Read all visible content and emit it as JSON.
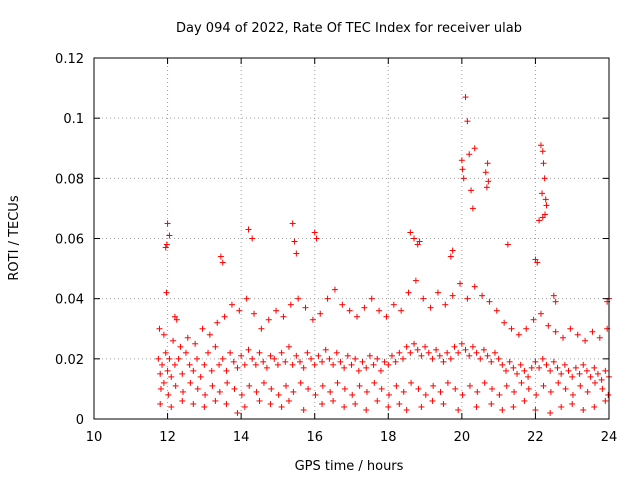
{
  "chart_data": {
    "type": "scatter",
    "title": "Day 094 of 2022, Rate Of TEC Index for receiver ulab",
    "xlabel": "GPS time / hours",
    "ylabel": "ROTI / TECUs",
    "xlim": [
      10,
      24
    ],
    "ylim": [
      0,
      0.12
    ],
    "x_ticks": [
      "10",
      "12",
      "14",
      "16",
      "18",
      "20",
      "22",
      "24"
    ],
    "y_ticks": [
      "0",
      "0.02",
      "0.04",
      "0.06",
      "0.08",
      "0.1",
      "0.12"
    ],
    "x_tick_values": [
      10,
      12,
      14,
      16,
      18,
      20,
      22,
      24
    ],
    "y_tick_values": [
      0,
      0.02,
      0.04,
      0.06,
      0.08,
      0.1,
      0.12
    ],
    "grid": true,
    "marker": "+",
    "marker_color": "#ff0000",
    "series": [
      {
        "x": [
          11.75,
          11.8,
          11.85,
          11.9,
          11.95,
          12.0,
          12.05,
          12.1,
          12.2,
          12.3,
          12.4,
          12.5,
          12.6,
          12.7,
          12.8,
          12.9,
          13.0,
          13.1,
          13.2,
          13.3,
          13.4,
          13.5,
          13.6,
          13.7,
          13.8,
          13.9,
          14.0,
          14.1,
          14.2,
          14.3,
          14.4,
          14.5,
          14.6,
          14.7,
          14.8,
          14.9,
          15.0,
          15.1,
          15.2,
          15.3,
          15.4,
          15.5,
          15.6,
          15.7,
          15.8,
          15.9,
          16.0,
          16.1,
          16.2,
          16.3,
          16.4,
          16.5,
          16.6,
          16.7,
          16.8,
          16.9,
          17.0,
          17.1,
          17.2,
          17.3,
          17.4,
          17.5,
          17.6,
          17.7,
          17.8,
          17.9,
          18.0,
          18.1,
          18.2,
          18.3,
          18.4,
          18.5,
          18.6,
          18.7,
          18.8,
          18.9,
          19.0,
          19.1,
          19.2,
          19.3,
          19.4,
          19.5,
          19.6,
          19.7,
          19.8,
          19.9,
          20.0,
          20.1,
          20.2,
          20.3,
          20.4,
          20.5,
          20.6,
          20.7,
          20.8,
          20.9,
          21.0,
          21.1,
          21.2,
          21.3,
          21.4,
          21.5,
          21.6,
          21.7,
          21.8,
          21.9,
          22.0,
          22.1,
          22.2,
          22.3,
          22.4,
          22.5,
          22.6,
          22.7,
          22.8,
          22.9,
          23.0,
          23.1,
          23.2,
          23.3,
          23.4,
          23.5,
          23.6,
          23.7,
          23.8,
          23.9,
          24.0,
          11.95,
          11.98,
          12.0,
          11.97,
          12.05,
          12.2,
          12.25,
          13.45,
          13.5,
          14.2,
          14.3,
          15.4,
          15.45,
          15.5,
          16.0,
          16.05,
          18.6,
          18.7,
          18.8,
          18.85,
          19.7,
          19.75,
          20.0,
          20.02,
          20.05,
          20.1,
          20.15,
          20.2,
          20.25,
          20.3,
          20.35,
          20.65,
          20.7,
          20.72,
          20.68,
          21.25,
          22.15,
          22.2,
          22.22,
          22.25,
          22.28,
          22.3,
          22.26,
          22.2,
          22.18,
          22.1,
          22.05,
          22.0,
          22.5,
          22.55,
          23.95,
          24.0,
          11.8,
          12.1,
          12.4,
          12.7,
          13.0,
          13.3,
          13.6,
          13.9,
          14.1,
          14.5,
          14.8,
          15.1,
          15.3,
          15.7,
          16.2,
          16.5,
          16.8,
          17.1,
          17.4,
          17.7,
          18.0,
          18.3,
          18.5,
          18.9,
          19.2,
          19.5,
          19.9,
          20.4,
          20.8,
          21.1,
          21.4,
          21.7,
          22.0,
          22.4,
          22.7,
          23.0,
          23.3,
          23.6,
          23.9,
          11.78,
          11.9,
          12.15,
          12.35,
          12.55,
          12.75,
          12.95,
          13.15,
          13.35,
          13.55,
          13.75,
          13.95,
          14.15,
          14.35,
          14.55,
          14.75,
          14.95,
          15.15,
          15.35,
          15.55,
          15.75,
          15.95,
          16.15,
          16.35,
          16.55,
          16.75,
          16.95,
          17.15,
          17.35,
          17.55,
          17.75,
          17.95,
          18.15,
          18.35,
          18.55,
          18.75,
          18.95,
          19.15,
          19.35,
          19.55,
          19.75,
          19.95,
          20.15,
          20.35,
          20.55,
          20.75,
          20.95,
          21.15,
          21.35,
          21.55,
          21.75,
          21.95,
          22.15,
          22.35,
          22.55,
          22.75,
          22.95,
          23.15,
          23.35,
          23.55,
          23.75,
          23.95,
          11.82,
          12.02,
          12.22,
          12.42,
          12.62,
          12.82,
          13.02,
          13.22,
          13.42,
          13.62,
          13.82,
          14.02,
          14.22,
          14.42,
          14.62,
          14.82,
          15.02,
          15.22,
          15.42,
          15.62,
          15.82,
          16.02,
          16.22,
          16.42,
          16.62,
          16.82,
          17.02,
          17.22,
          17.42,
          17.62,
          17.82,
          18.02,
          18.22,
          18.42,
          18.62,
          18.82,
          19.02,
          19.22,
          19.42,
          19.62,
          19.82,
          20.02,
          20.22,
          20.42,
          20.62,
          20.82,
          21.02,
          21.22,
          21.42,
          21.62,
          21.82,
          22.02,
          22.22,
          22.42,
          22.62,
          22.82,
          23.02,
          23.22,
          23.42,
          23.62,
          23.82,
          23.98
        ],
        "y": [
          0.02,
          0.015,
          0.018,
          0.012,
          0.022,
          0.016,
          0.02,
          0.014,
          0.018,
          0.02,
          0.015,
          0.022,
          0.018,
          0.016,
          0.02,
          0.014,
          0.018,
          0.022,
          0.016,
          0.024,
          0.018,
          0.02,
          0.016,
          0.022,
          0.019,
          0.017,
          0.021,
          0.018,
          0.023,
          0.02,
          0.018,
          0.022,
          0.019,
          0.017,
          0.021,
          0.02,
          0.018,
          0.022,
          0.019,
          0.024,
          0.018,
          0.021,
          0.019,
          0.017,
          0.022,
          0.02,
          0.018,
          0.021,
          0.019,
          0.023,
          0.02,
          0.018,
          0.022,
          0.019,
          0.017,
          0.021,
          0.018,
          0.02,
          0.016,
          0.019,
          0.017,
          0.021,
          0.018,
          0.02,
          0.016,
          0.019,
          0.018,
          0.021,
          0.019,
          0.022,
          0.02,
          0.024,
          0.022,
          0.025,
          0.023,
          0.021,
          0.024,
          0.022,
          0.02,
          0.023,
          0.021,
          0.019,
          0.022,
          0.02,
          0.024,
          0.022,
          0.025,
          0.023,
          0.021,
          0.024,
          0.022,
          0.02,
          0.023,
          0.021,
          0.019,
          0.022,
          0.02,
          0.018,
          0.016,
          0.019,
          0.017,
          0.015,
          0.018,
          0.016,
          0.014,
          0.017,
          0.019,
          0.017,
          0.02,
          0.018,
          0.016,
          0.019,
          0.017,
          0.015,
          0.018,
          0.016,
          0.014,
          0.017,
          0.015,
          0.018,
          0.016,
          0.014,
          0.017,
          0.015,
          0.013,
          0.016,
          0.014,
          0.057,
          0.058,
          0.065,
          0.042,
          0.061,
          0.034,
          0.033,
          0.054,
          0.052,
          0.063,
          0.06,
          0.065,
          0.059,
          0.055,
          0.062,
          0.06,
          0.062,
          0.06,
          0.058,
          0.059,
          0.054,
          0.056,
          0.086,
          0.083,
          0.08,
          0.107,
          0.099,
          0.088,
          0.076,
          0.07,
          0.09,
          0.082,
          0.085,
          0.079,
          0.077,
          0.058,
          0.091,
          0.089,
          0.085,
          0.08,
          0.073,
          0.071,
          0.068,
          0.067,
          0.075,
          0.066,
          0.052,
          0.053,
          0.041,
          0.039,
          0.039,
          0.04,
          0.005,
          0.004,
          0.006,
          0.005,
          0.004,
          0.006,
          0.005,
          0.002,
          0.004,
          0.006,
          0.005,
          0.004,
          0.006,
          0.003,
          0.005,
          0.006,
          0.004,
          0.005,
          0.003,
          0.006,
          0.004,
          0.005,
          0.003,
          0.004,
          0.006,
          0.005,
          0.003,
          0.004,
          0.005,
          0.003,
          0.004,
          0.006,
          0.003,
          0.002,
          0.004,
          0.005,
          0.003,
          0.004,
          0.006,
          0.03,
          0.028,
          0.026,
          0.024,
          0.027,
          0.025,
          0.03,
          0.028,
          0.032,
          0.034,
          0.038,
          0.036,
          0.04,
          0.035,
          0.03,
          0.033,
          0.036,
          0.034,
          0.038,
          0.04,
          0.037,
          0.033,
          0.035,
          0.04,
          0.043,
          0.038,
          0.036,
          0.034,
          0.037,
          0.04,
          0.036,
          0.034,
          0.038,
          0.036,
          0.042,
          0.046,
          0.04,
          0.037,
          0.042,
          0.038,
          0.041,
          0.045,
          0.04,
          0.044,
          0.041,
          0.039,
          0.036,
          0.032,
          0.03,
          0.028,
          0.03,
          0.033,
          0.035,
          0.031,
          0.029,
          0.027,
          0.03,
          0.028,
          0.026,
          0.029,
          0.027,
          0.03,
          0.01,
          0.008,
          0.011,
          0.009,
          0.012,
          0.01,
          0.008,
          0.011,
          0.009,
          0.012,
          0.01,
          0.008,
          0.011,
          0.009,
          0.012,
          0.01,
          0.008,
          0.011,
          0.009,
          0.012,
          0.01,
          0.008,
          0.011,
          0.009,
          0.012,
          0.01,
          0.008,
          0.011,
          0.009,
          0.012,
          0.01,
          0.008,
          0.011,
          0.009,
          0.012,
          0.01,
          0.008,
          0.011,
          0.009,
          0.012,
          0.01,
          0.008,
          0.011,
          0.009,
          0.012,
          0.01,
          0.008,
          0.011,
          0.009,
          0.012,
          0.01,
          0.008,
          0.011,
          0.009,
          0.012,
          0.01,
          0.008,
          0.011,
          0.009,
          0.012,
          0.01,
          0.008
        ]
      }
    ]
  }
}
